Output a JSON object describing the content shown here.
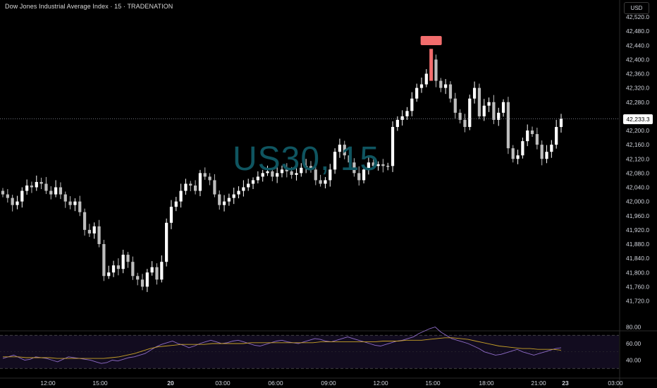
{
  "title": "Dow Jones Industrial Average Index · 15 · TRADENATION",
  "watermark": "US30, 15",
  "currency": "USD",
  "last_price": "42,233.3",
  "colors": {
    "background": "#000000",
    "up_candle": "#ffffff",
    "down_candle": "#bdbdbd",
    "high_marker": "#f26d6d",
    "rsi_line": "#8f6cc8",
    "rsi_ma": "#c9a227",
    "axis_text": "#d1d4dc"
  },
  "chart_data": [
    {
      "type": "candlestick",
      "title": "Dow Jones Industrial Average Index · 15 · TRADENATION",
      "y_axis_ticks": [
        "42,520.0",
        "42,480.0",
        "42,440.0",
        "42,400.0",
        "42,360.0",
        "42,320.0",
        "42,280.0",
        "42,200.0",
        "42,160.0",
        "42,120.0",
        "42,080.0",
        "42,040.0",
        "42,000.0",
        "41,960.0",
        "41,920.0",
        "41,880.0",
        "41,840.0",
        "41,800.0",
        "41,760.0",
        "41,720.0"
      ],
      "ylim": [
        41700,
        42540
      ],
      "x_axis_ticks": [
        "12:00",
        "15:00",
        "20",
        "03:00",
        "06:00",
        "09:00",
        "12:00",
        "15:00",
        "18:00",
        "21:00",
        "23",
        "03:00"
      ],
      "current_price": 42233.3,
      "close_path": [
        42020,
        42010,
        41990,
        42000,
        42030,
        42045,
        42040,
        42055,
        42050,
        42030,
        42020,
        42040,
        42020,
        42000,
        41990,
        42000,
        41970,
        41920,
        41910,
        41930,
        41880,
        41790,
        41800,
        41820,
        41810,
        41850,
        41830,
        41790,
        41780,
        41760,
        41800,
        41815,
        41780,
        41830,
        41940,
        41985,
        42000,
        42030,
        42050,
        42045,
        42030,
        42080,
        42070,
        42060,
        42020,
        41990,
        42000,
        42010,
        42020,
        42030,
        42040,
        42050,
        42060,
        42070,
        42080,
        42085,
        42070,
        42080,
        42090,
        42085,
        42075,
        42080,
        42095,
        42100,
        42090,
        42060,
        42050,
        42060,
        42090,
        42140,
        42160,
        42130,
        42110,
        42080,
        42060,
        42090,
        42110,
        42100,
        42105,
        42100,
        42100,
        42210,
        42230,
        42240,
        42255,
        42290,
        42320,
        42330,
        42360,
        42400,
        42340,
        42320,
        42330,
        42290,
        42250,
        42230,
        42210,
        42290,
        42320,
        42240,
        42270,
        42280,
        42230,
        42250,
        42280,
        42150,
        42120,
        42130,
        42170,
        42200,
        42190,
        42160,
        42120,
        42140,
        42160,
        42210,
        42233
      ]
    },
    {
      "type": "line",
      "title": "",
      "y_axis_ticks": [
        "80.00",
        "60.00",
        "40.00"
      ],
      "ylim": [
        30,
        85
      ],
      "series": [
        {
          "name": "",
          "values": [
            42,
            44,
            46,
            43,
            40,
            41,
            44,
            43,
            42,
            40,
            38,
            41,
            44,
            43,
            42,
            41,
            40,
            38,
            36,
            37,
            40,
            39,
            41,
            43,
            44,
            46,
            48,
            52,
            56,
            59,
            61,
            63,
            60,
            58,
            55,
            57,
            60,
            62,
            64,
            62,
            60,
            61,
            63,
            64,
            62,
            60,
            58,
            57,
            59,
            61,
            63,
            64,
            62,
            61,
            60,
            62,
            64,
            66,
            65,
            63,
            62,
            64,
            66,
            68,
            66,
            64,
            62,
            60,
            58,
            57,
            59,
            61,
            63,
            64,
            66,
            68,
            72,
            75,
            78,
            80,
            74,
            70,
            66,
            64,
            62,
            60,
            57,
            54,
            50,
            48,
            46,
            47,
            49,
            51,
            53,
            50,
            48,
            46,
            48,
            50,
            52,
            54,
            55
          ]
        },
        {
          "name": "",
          "values": [
            44,
            44,
            44,
            43,
            43,
            43,
            43,
            42,
            42,
            42,
            42,
            42,
            42,
            42,
            43,
            44,
            46,
            48,
            51,
            54,
            56,
            57,
            58,
            59,
            59,
            59,
            59,
            60,
            60,
            60,
            60,
            60,
            61,
            61,
            61,
            61,
            61,
            61,
            61,
            61,
            61,
            62,
            62,
            62,
            62,
            62,
            62,
            62,
            62,
            63,
            63,
            63,
            64,
            64,
            64,
            65,
            66,
            67,
            67,
            66,
            65,
            63,
            61,
            59,
            57,
            56,
            55,
            54,
            54,
            53,
            53,
            53,
            52
          ]
        }
      ]
    }
  ]
}
